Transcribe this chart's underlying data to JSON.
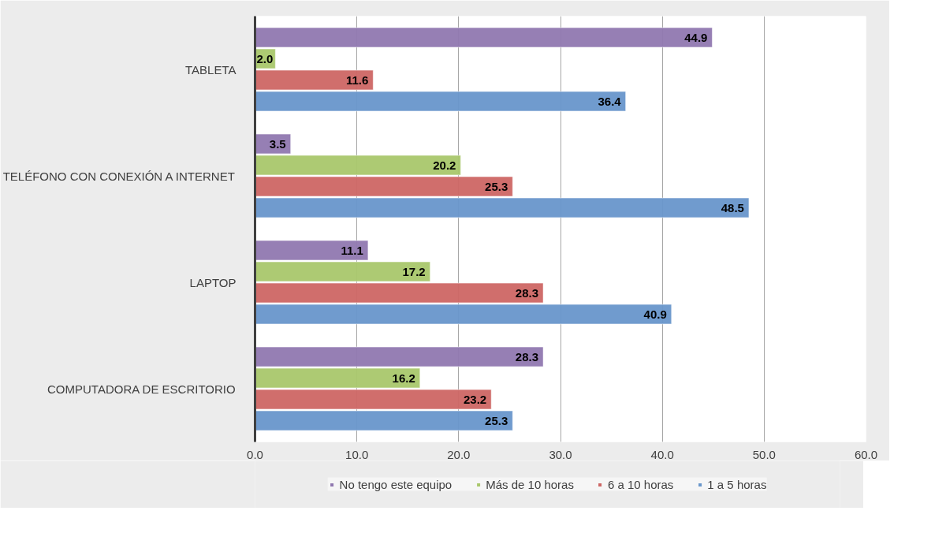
{
  "chart_data": {
    "type": "bar",
    "orientation": "horizontal",
    "categories": [
      "TABLETA",
      "TELÉFONO CON CONEXIÓN A INTERNET",
      "LAPTOP",
      "COMPUTADORA DE ESCRITORIO"
    ],
    "series": [
      {
        "name": "No tengo este equipo",
        "color": "#9078b0",
        "values": [
          44.9,
          3.5,
          11.1,
          28.3
        ],
        "value_labels": [
          "44.9",
          "3.5",
          "11.1",
          "28.3"
        ]
      },
      {
        "name": "Más de 10 horas",
        "color": "#a9c76c",
        "values": [
          2.0,
          20.2,
          17.2,
          16.2
        ],
        "value_labels": [
          "2.0",
          "20.2",
          "17.2",
          "16.2"
        ]
      },
      {
        "name": "6 a 10 horas",
        "color": "#cd6664",
        "values": [
          11.6,
          25.3,
          28.3,
          23.2
        ],
        "value_labels": [
          "11.6",
          "25.3",
          "28.3",
          "23.2"
        ]
      },
      {
        "name": "1 a 5 horas",
        "color": "#6896cb",
        "values": [
          36.4,
          48.5,
          40.9,
          25.3
        ],
        "value_labels": [
          "36.4",
          "48.5",
          "40.9",
          "25.3"
        ]
      }
    ],
    "xlim": [
      0,
      60
    ],
    "xticks": [
      {
        "value": 0,
        "label": "0.0"
      },
      {
        "value": 10,
        "label": "10.0"
      },
      {
        "value": 20,
        "label": "20.0"
      },
      {
        "value": 30,
        "label": "30.0"
      },
      {
        "value": 40,
        "label": "40.0"
      },
      {
        "value": 50,
        "label": "50.0"
      },
      {
        "value": 60,
        "label": "60.0"
      }
    ],
    "grid": "x",
    "legend": "bottom"
  }
}
